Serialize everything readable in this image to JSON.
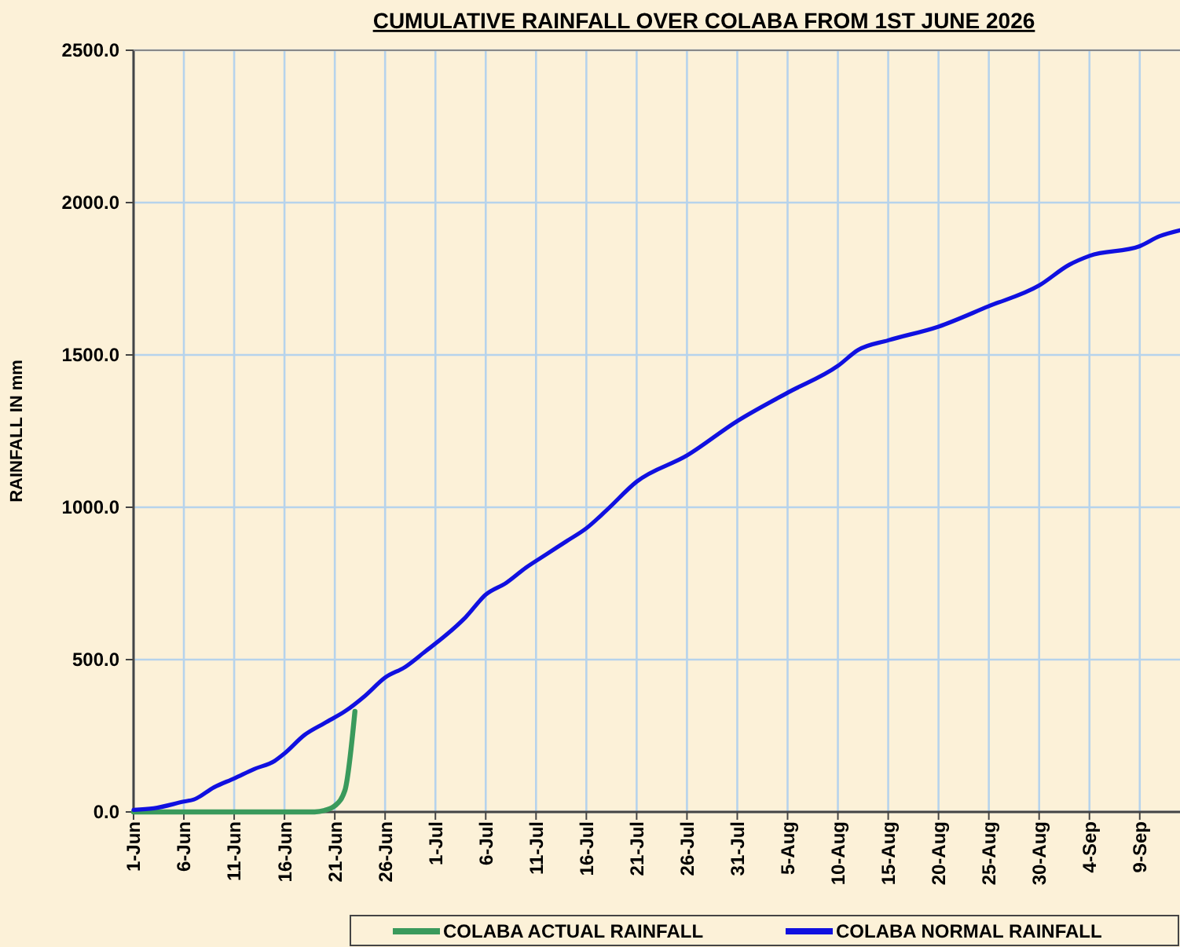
{
  "chart_data": {
    "type": "line",
    "title": "CUMULATIVE RAINFALL OVER COLABA FROM 1ST JUNE 2026",
    "ylabel": "RAINFALL IN mm",
    "xlim": [
      "2026-06-01",
      "2026-09-13"
    ],
    "xticks": [
      {
        "value": "2026-06-01",
        "label": "1-Jun"
      },
      {
        "value": "2026-06-06",
        "label": "6-Jun"
      },
      {
        "value": "2026-06-11",
        "label": "11-Jun"
      },
      {
        "value": "2026-06-16",
        "label": "16-Jun"
      },
      {
        "value": "2026-06-21",
        "label": "21-Jun"
      },
      {
        "value": "2026-06-26",
        "label": "26-Jun"
      },
      {
        "value": "2026-07-01",
        "label": "1-Jul"
      },
      {
        "value": "2026-07-06",
        "label": "6-Jul"
      },
      {
        "value": "2026-07-11",
        "label": "11-Jul"
      },
      {
        "value": "2026-07-16",
        "label": "16-Jul"
      },
      {
        "value": "2026-07-21",
        "label": "21-Jul"
      },
      {
        "value": "2026-07-26",
        "label": "26-Jul"
      },
      {
        "value": "2026-07-31",
        "label": "31-Jul"
      },
      {
        "value": "2026-08-05",
        "label": "5-Aug"
      },
      {
        "value": "2026-08-10",
        "label": "10-Aug"
      },
      {
        "value": "2026-08-15",
        "label": "15-Aug"
      },
      {
        "value": "2026-08-20",
        "label": "20-Aug"
      },
      {
        "value": "2026-08-25",
        "label": "25-Aug"
      },
      {
        "value": "2026-08-30",
        "label": "30-Aug"
      },
      {
        "value": "2026-09-04",
        "label": "4-Sep"
      },
      {
        "value": "2026-09-09",
        "label": "9-Sep"
      }
    ],
    "ylim": [
      0,
      2500
    ],
    "yticks": [
      {
        "value": 0,
        "label": "0.0"
      },
      {
        "value": 500,
        "label": "500.0"
      },
      {
        "value": 1000,
        "label": "1000.0"
      },
      {
        "value": 1500,
        "label": "1500.0"
      },
      {
        "value": 2000,
        "label": "2000.0"
      },
      {
        "value": 2500,
        "label": "2500.0"
      }
    ],
    "grid": true,
    "legend": "bottom",
    "marker": "none",
    "line_style": "solid",
    "series": [
      {
        "name": "COLABA ACTUAL RAINFALL",
        "color": "#3a9a5c",
        "x": [
          "2026-06-01",
          "2026-06-05",
          "2026-06-10",
          "2026-06-15",
          "2026-06-19",
          "2026-06-20",
          "2026-06-21",
          "2026-06-22",
          "2026-06-23"
        ],
        "values": [
          0,
          0,
          0,
          0,
          0,
          5,
          20,
          70,
          330
        ]
      },
      {
        "name": "COLABA NORMAL RAINFALL",
        "color": "#1010e0",
        "x": [
          "2026-06-01",
          "2026-06-03",
          "2026-06-06",
          "2026-06-07",
          "2026-06-09",
          "2026-06-11",
          "2026-06-13",
          "2026-06-15",
          "2026-06-16",
          "2026-06-18",
          "2026-06-20",
          "2026-06-22",
          "2026-06-24",
          "2026-06-26",
          "2026-06-28",
          "2026-06-30",
          "2026-07-02",
          "2026-07-04",
          "2026-07-06",
          "2026-07-08",
          "2026-07-10",
          "2026-07-12",
          "2026-07-14",
          "2026-07-16",
          "2026-07-18",
          "2026-07-21",
          "2026-07-26",
          "2026-07-31",
          "2026-08-05",
          "2026-08-10",
          "2026-08-12",
          "2026-08-15",
          "2026-08-20",
          "2026-08-25",
          "2026-08-30",
          "2026-09-02",
          "2026-09-04",
          "2026-09-09",
          "2026-09-11",
          "2026-09-13"
        ],
        "values": [
          7,
          12,
          34,
          41,
          81,
          110,
          141,
          167,
          192,
          253,
          292,
          330,
          381,
          441,
          476,
          527,
          579,
          639,
          713,
          751,
          802,
          845,
          888,
          931,
          990,
          1084,
          1170,
          1283,
          1376,
          1464,
          1516,
          1548,
          1593,
          1660,
          1728,
          1796,
          1825,
          1857,
          1890,
          1909
        ]
      }
    ]
  }
}
